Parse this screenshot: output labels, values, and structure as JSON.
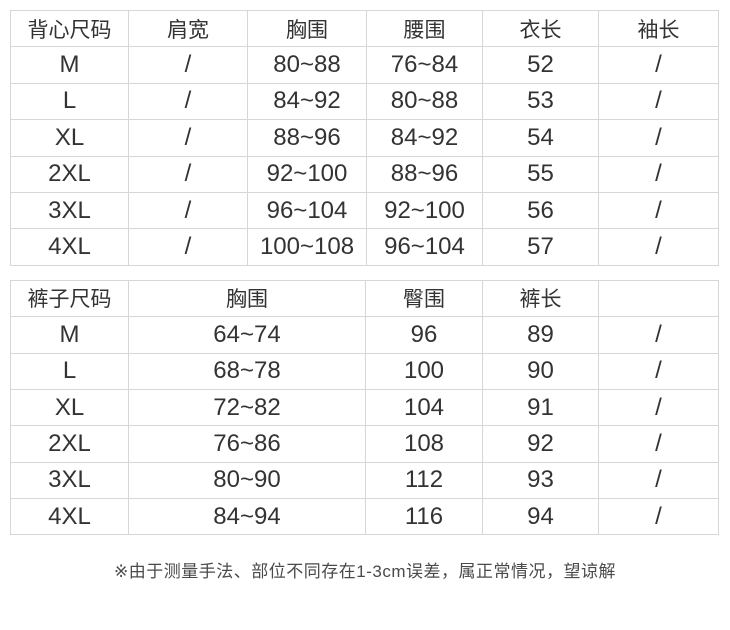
{
  "page": {
    "background_color": "#ffffff",
    "text_color": "#333333",
    "border_color": "#d7d7d7"
  },
  "vest_table": {
    "headers": [
      "背心尺码",
      "肩宽",
      "胸围",
      "腰围",
      "衣长",
      "袖长"
    ],
    "rows": [
      [
        "M",
        "/",
        "80~88",
        "76~84",
        "52",
        "/"
      ],
      [
        "L",
        "/",
        "84~92",
        "80~88",
        "53",
        "/"
      ],
      [
        "XL",
        "/",
        "88~96",
        "84~92",
        "54",
        "/"
      ],
      [
        "2XL",
        "/",
        "92~100",
        "88~96",
        "55",
        "/"
      ],
      [
        "3XL",
        "/",
        "96~104",
        "92~100",
        "56",
        "/"
      ],
      [
        "4XL",
        "/",
        "100~108",
        "96~104",
        "57",
        "/"
      ]
    ]
  },
  "pants_table": {
    "headers": [
      "裤子尺码",
      "胸围",
      "臀围",
      "裤长",
      ""
    ],
    "rows": [
      [
        "M",
        "64~74",
        "96",
        "89",
        "/"
      ],
      [
        "L",
        "68~78",
        "100",
        "90",
        "/"
      ],
      [
        "XL",
        "72~82",
        "104",
        "91",
        "/"
      ],
      [
        "2XL",
        "76~86",
        "108",
        "92",
        "/"
      ],
      [
        "3XL",
        "80~90",
        "112",
        "93",
        "/"
      ],
      [
        "4XL",
        "84~94",
        "116",
        "94",
        "/"
      ]
    ]
  },
  "footnote": "※由于测量手法、部位不同存在1-3cm误差，属正常情况，望谅解"
}
